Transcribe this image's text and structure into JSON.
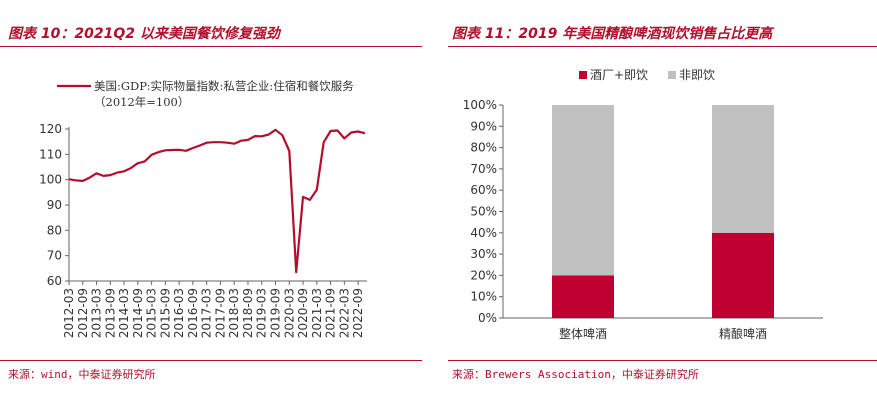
{
  "left_panel": {
    "title": "图表 10：2021Q2 以来美国餐饮修复强劲",
    "source": "来源：wind，中泰证券研究所",
    "chart_data": {
      "type": "line",
      "title": "",
      "xlabel": "",
      "ylabel": "",
      "ylim": [
        60,
        120
      ],
      "yticks": [
        60,
        70,
        80,
        90,
        100,
        110,
        120
      ],
      "xticks": [
        "2012-03",
        "2012-09",
        "2013-03",
        "2013-09",
        "2014-03",
        "2014-09",
        "2015-03",
        "2015-09",
        "2016-03",
        "2016-09",
        "2017-03",
        "2017-09",
        "2018-03",
        "2018-09",
        "2019-03",
        "2019-09",
        "2020-03",
        "2020-09",
        "2021-03",
        "2021-09",
        "2022-03",
        "2022-09"
      ],
      "legend_position": "top",
      "series": [
        {
          "name": "美国:GDP:实际物量指数:私营企业:住宿和餐饮服务",
          "name_line2": "（2012年=100）",
          "color": "#b30f2d",
          "x": [
            "2012-03",
            "2012-06",
            "2012-09",
            "2012-12",
            "2013-03",
            "2013-06",
            "2013-09",
            "2013-12",
            "2014-03",
            "2014-06",
            "2014-09",
            "2014-12",
            "2015-03",
            "2015-06",
            "2015-09",
            "2015-12",
            "2016-03",
            "2016-06",
            "2016-09",
            "2016-12",
            "2017-03",
            "2017-06",
            "2017-09",
            "2017-12",
            "2018-03",
            "2018-06",
            "2018-09",
            "2018-12",
            "2019-03",
            "2019-06",
            "2019-09",
            "2019-12",
            "2020-03",
            "2020-06",
            "2020-09",
            "2020-12",
            "2021-03",
            "2021-06",
            "2021-09",
            "2021-12",
            "2022-03",
            "2022-06",
            "2022-09",
            "2022-12"
          ],
          "values": [
            100.2,
            99.7,
            99.5,
            100.8,
            102.5,
            101.5,
            101.8,
            102.8,
            103.3,
            104.6,
            106.5,
            107.2,
            109.8,
            110.9,
            111.6,
            111.7,
            111.8,
            111.4,
            112.5,
            113.5,
            114.6,
            114.8,
            114.8,
            114.6,
            114.2,
            115.4,
            115.7,
            117.2,
            117.1,
            117.8,
            119.7,
            117.5,
            111.3,
            63.5,
            93.2,
            92.0,
            96.0,
            114.8,
            119.2,
            119.4,
            116.3,
            118.6,
            119.0,
            118.3
          ]
        }
      ]
    }
  },
  "right_panel": {
    "title": "图表 11：2019 年美国精酿啤酒现饮销售占比更高",
    "source": "来源：Brewers Association，中泰证券研究所",
    "chart_data": {
      "type": "bar",
      "stacked": true,
      "title": "",
      "xlabel": "",
      "ylabel": "",
      "ylim": [
        0,
        100
      ],
      "yticks": [
        "0%",
        "10%",
        "20%",
        "30%",
        "40%",
        "50%",
        "60%",
        "70%",
        "80%",
        "90%",
        "100%"
      ],
      "categories": [
        "整体啤酒",
        "精酿啤酒"
      ],
      "legend_position": "top",
      "series": [
        {
          "name": "酒厂+即饮",
          "color": "#c00030",
          "values": [
            20,
            40
          ]
        },
        {
          "name": "非即饮",
          "color": "#c0c0c0",
          "values": [
            80,
            60
          ]
        }
      ]
    }
  }
}
